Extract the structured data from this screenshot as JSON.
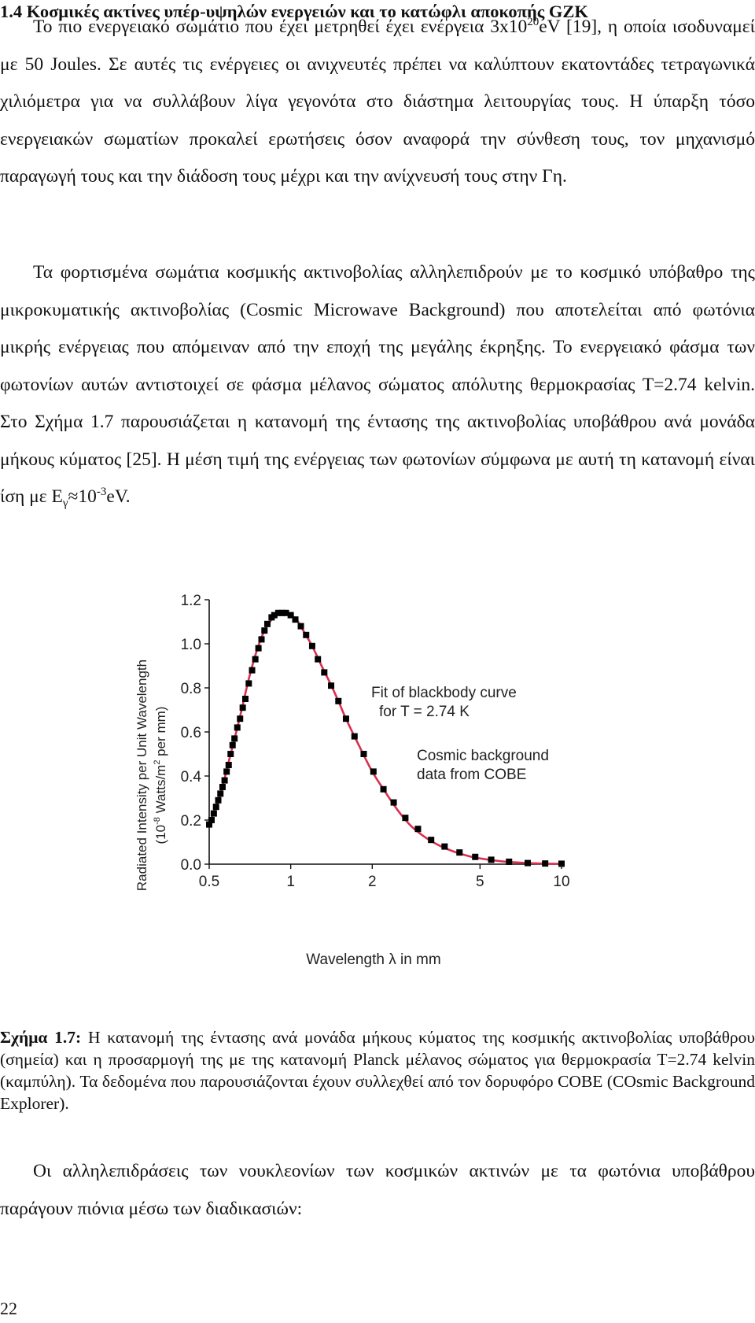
{
  "section_title": "1.4 Κοσμικές ακτίνες υπέρ-υψηλών ενεργειών και το κατώφλι αποκοπής GZK",
  "paragraph1": {
    "part_a": "Το πιο ενεργειακό σωμάτιο που έχει μετρηθεί έχει ενέργεια 3x10",
    "superscript": "20",
    "part_b": "eV [19], η οποία ισοδυναμεί με 50 Joules. Σε αυτές τις ενέργειες οι ανιχνευτές πρέπει να καλύπτουν εκατοντάδες τετραγωνικά χιλιόμετρα για να συλλάβουν λίγα γεγονότα στο διάστημα λειτουργίας τους. Η ύπαρξη τόσο ενεργειακών σωματίων προκαλεί ερωτήσεις όσον αναφορά την σύνθεση τους, τον μηχανισμό παραγωγή τους και την διάδοση τους μέχρι και την ανίχνευσή τους στην Γη."
  },
  "paragraph2": {
    "text": "Τα φορτισμένα σωμάτια κοσμικής ακτινοβολίας αλληλεπιδρούν με το κοσμικό υπόβαθρο της μικροκυματικής ακτινοβολίας (Cosmic Microwave Background) που αποτελείται από φωτόνια μικρής ενέργειας που απόμειναν από την εποχή της μεγάλης έκρηξης. Το ενεργειακό φάσμα των φωτονίων αυτών αντιστοιχεί σε φάσμα μέλανος σώματος απόλυτης θερμοκρασίας Τ=2.74 kelvin. Στο Σχήμα 1.7 παρουσιάζεται η κατανομή της έντασης της ακτινοβολίας υποβάθρου ανά μονάδα μήκους κύματος [25]. Η μέση τιμή της ενέργειας των φωτονίων σύμφωνα με αυτή τη κατανομή είναι ίση με Ε",
    "subscript": "γ",
    "approx": "≈10",
    "superscript": "-3",
    "tail": "eV."
  },
  "caption": {
    "label": "Σχήμα 1.7:",
    "text": " Η κατανομή της έντασης ανά μονάδα μήκους κύματος της κοσμικής ακτινοβολίας υποβάθρου (σημεία) και η προσαρμογή της με της κατανομή Planck μέλανος σώματος για θερμοκρασία Τ=2.74 kelvin (καμπύλη). Τα δεδομένα που παρουσιάζονται έχουν συλλεχθεί από τον δορυφόρο COBE (COsmic Background Explorer)."
  },
  "paragraph3": "Οι αλληλεπιδράσεις των νουκλεονίων των κοσμικών ακτινών με τα φωτόνια υποβάθρου παράγουν πιόνια μέσω των διαδικασιών:",
  "page_number": "22",
  "chart_data": {
    "type": "scatter",
    "xscale": "log",
    "xlim": [
      0.5,
      10
    ],
    "ylim": [
      0,
      1.2
    ],
    "x_ticks": [
      0.5,
      1,
      2,
      5,
      10
    ],
    "x_tick_labels": [
      "0.5",
      "1",
      "2",
      "5",
      "10"
    ],
    "y_ticks": [
      0,
      0.2,
      0.4,
      0.6,
      0.8,
      1.0,
      1.2
    ],
    "y_tick_labels": [
      "0.0",
      "0.2",
      "0.4",
      "0.6",
      "0.8",
      "1.0",
      "1.2"
    ],
    "xlabel": "Wavelength λ in mm",
    "ylabel_line1": "Radiated Intensity per Unit Wavelength",
    "ylabel_line2_pre": "(10",
    "ylabel_line2_sup1": "-8",
    "ylabel_line2_mid": " Watts/m",
    "ylabel_line2_sup2": "2",
    "ylabel_line2_post": " per mm)",
    "fit_label_line1": "Fit of blackbody curve",
    "fit_label_line2": "for T = 2.74 K",
    "data_label_line1": "Cosmic background",
    "data_label_line2": "data from COBE",
    "fit_color": "#d9304f",
    "marker_color": "#000000",
    "series": [
      {
        "kind": "fit_curve",
        "x": [
          0.5,
          0.55,
          0.6,
          0.65,
          0.7,
          0.75,
          0.8,
          0.85,
          0.9,
          0.95,
          1.0,
          1.05,
          1.1,
          1.2,
          1.3,
          1.4,
          1.5,
          1.6,
          1.8,
          2.0,
          2.2,
          2.5,
          2.8,
          3.2,
          3.6,
          4.0,
          4.5,
          5.0,
          6.0,
          7.0,
          8.0,
          9.0,
          10.0
        ],
        "y": [
          0.18,
          0.32,
          0.5,
          0.67,
          0.84,
          0.97,
          1.06,
          1.11,
          1.14,
          1.14,
          1.13,
          1.11,
          1.07,
          0.99,
          0.9,
          0.82,
          0.74,
          0.66,
          0.53,
          0.42,
          0.34,
          0.24,
          0.17,
          0.115,
          0.08,
          0.057,
          0.038,
          0.026,
          0.013,
          0.007,
          0.004,
          0.002,
          0.0015
        ]
      },
      {
        "kind": "cobe_data",
        "x": [
          0.5,
          0.51,
          0.52,
          0.53,
          0.54,
          0.55,
          0.56,
          0.57,
          0.58,
          0.59,
          0.6,
          0.61,
          0.62,
          0.635,
          0.65,
          0.665,
          0.68,
          0.7,
          0.72,
          0.74,
          0.76,
          0.78,
          0.8,
          0.82,
          0.85,
          0.87,
          0.9,
          0.93,
          0.96,
          1.0,
          1.04,
          1.09,
          1.14,
          1.2,
          1.26,
          1.33,
          1.41,
          1.5,
          1.6,
          1.72,
          1.86,
          2.02,
          2.2,
          2.4,
          2.65,
          2.95,
          3.3,
          3.7,
          4.2,
          4.8,
          5.5,
          6.4,
          7.5,
          8.7,
          10.0
        ],
        "y": [
          0.18,
          0.2,
          0.23,
          0.26,
          0.29,
          0.32,
          0.35,
          0.38,
          0.42,
          0.45,
          0.5,
          0.54,
          0.57,
          0.62,
          0.66,
          0.71,
          0.75,
          0.82,
          0.88,
          0.93,
          0.98,
          1.02,
          1.06,
          1.09,
          1.12,
          1.13,
          1.14,
          1.14,
          1.14,
          1.13,
          1.11,
          1.08,
          1.04,
          0.99,
          0.93,
          0.87,
          0.81,
          0.74,
          0.66,
          0.58,
          0.5,
          0.42,
          0.34,
          0.28,
          0.21,
          0.16,
          0.11,
          0.08,
          0.053,
          0.033,
          0.02,
          0.011,
          0.005,
          0.003,
          0.002
        ]
      }
    ]
  }
}
